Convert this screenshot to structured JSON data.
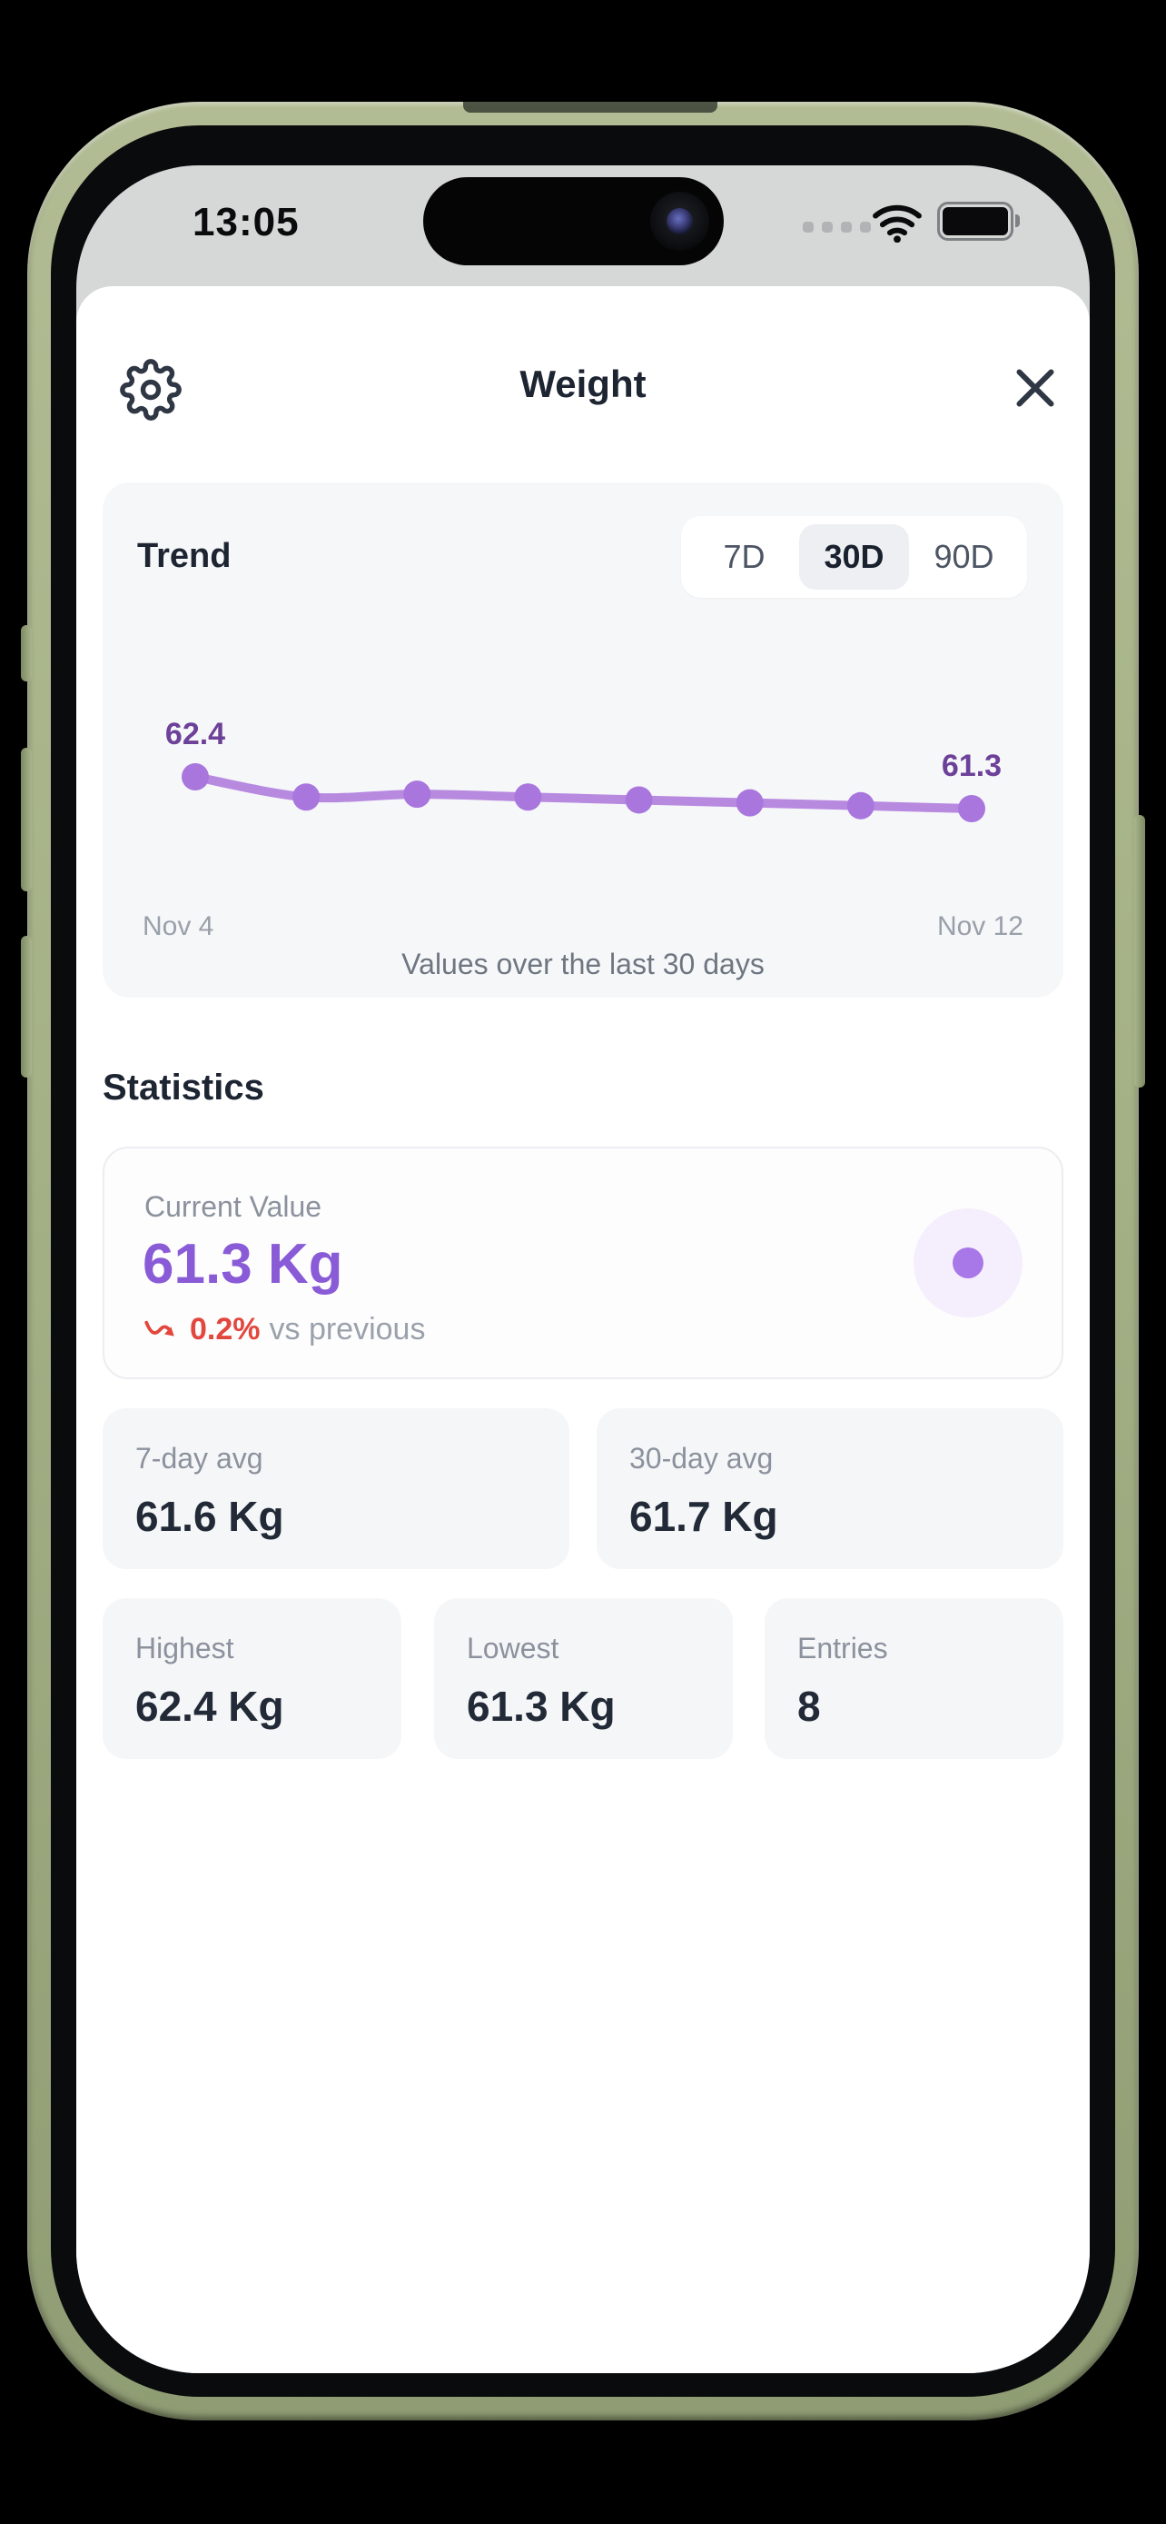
{
  "status_bar": {
    "time": "13:05",
    "icons": [
      "cellular-dots",
      "wifi",
      "battery-full"
    ]
  },
  "header": {
    "title": "Weight"
  },
  "trend_card": {
    "title": "Trend",
    "ranges": [
      {
        "label": "7D",
        "selected": false
      },
      {
        "label": "30D",
        "selected": true
      },
      {
        "label": "90D",
        "selected": false
      }
    ],
    "x_start_label": "Nov 4",
    "x_end_label": "Nov 12",
    "caption": "Values over the last 30 days"
  },
  "chart_data": {
    "type": "line",
    "unit": "Kg",
    "x_range_labels": [
      "Nov 4",
      "Nov 12"
    ],
    "values": [
      62.4,
      61.7,
      61.8,
      61.7,
      61.6,
      61.5,
      61.4,
      61.3
    ],
    "first_point_label": "62.4",
    "last_point_label": "61.3",
    "ylim": [
      61.0,
      62.8
    ],
    "grid": false,
    "line_color": "#b78ae0",
    "point_color": "#a976dd",
    "label_color": "#6d4199"
  },
  "statistics": {
    "heading": "Statistics",
    "current": {
      "label": "Current Value",
      "value": "61.3 Kg",
      "change": "0.2%",
      "change_direction": "down",
      "change_suffix": "vs previous"
    },
    "cards": [
      {
        "label": "7-day avg",
        "value": "61.6 Kg"
      },
      {
        "label": "30-day avg",
        "value": "61.7 Kg"
      },
      {
        "label": "Highest",
        "value": "62.4 Kg"
      },
      {
        "label": "Lowest",
        "value": "61.3 Kg"
      },
      {
        "label": "Entries",
        "value": "8"
      }
    ]
  },
  "colors": {
    "accent_purple": "#8a5bd6",
    "chart_line": "#b78ae0",
    "chart_point": "#a976dd",
    "chart_label": "#6d4199",
    "negative_red": "#e2473d",
    "text_dark": "#1e2532",
    "text_gray": "#8b929d",
    "card_bg": "#f5f6f8",
    "status_bg": "#d6d7d7",
    "phone_frame_green": "#a4b086"
  }
}
